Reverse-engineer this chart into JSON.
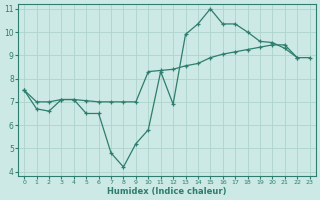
{
  "line1_x": [
    0,
    1,
    2,
    3,
    4,
    5,
    6,
    7,
    8,
    9,
    10,
    11,
    12,
    13,
    14,
    15,
    16,
    17,
    18,
    19,
    20,
    21,
    22
  ],
  "line1_y": [
    7.5,
    6.7,
    6.6,
    7.1,
    7.1,
    6.5,
    6.5,
    4.8,
    4.2,
    5.2,
    5.8,
    8.3,
    6.9,
    9.9,
    10.35,
    11.0,
    10.35,
    10.35,
    10.0,
    9.6,
    9.55,
    9.3,
    8.9
  ],
  "line2_x": [
    0,
    1,
    2,
    3,
    4,
    5,
    6,
    7,
    8,
    9,
    10,
    11,
    12,
    13,
    14,
    15,
    16,
    17,
    18,
    19,
    20,
    21,
    22,
    23
  ],
  "line2_y": [
    7.5,
    7.0,
    7.0,
    7.1,
    7.1,
    7.05,
    7.0,
    7.0,
    7.0,
    7.0,
    8.3,
    8.35,
    8.4,
    8.55,
    8.65,
    8.9,
    9.05,
    9.15,
    9.25,
    9.35,
    9.45,
    9.45,
    8.9,
    8.9
  ],
  "line_color": "#2e7d6e",
  "bg_color": "#cce9e5",
  "grid_color": "#aed4ce",
  "xlabel": "Humidex (Indice chaleur)",
  "xlim": [
    -0.5,
    23.5
  ],
  "ylim": [
    3.8,
    11.2
  ],
  "yticks": [
    4,
    5,
    6,
    7,
    8,
    9,
    10,
    11
  ],
  "xticks": [
    0,
    1,
    2,
    3,
    4,
    5,
    6,
    7,
    8,
    9,
    10,
    11,
    12,
    13,
    14,
    15,
    16,
    17,
    18,
    19,
    20,
    21,
    22,
    23
  ]
}
